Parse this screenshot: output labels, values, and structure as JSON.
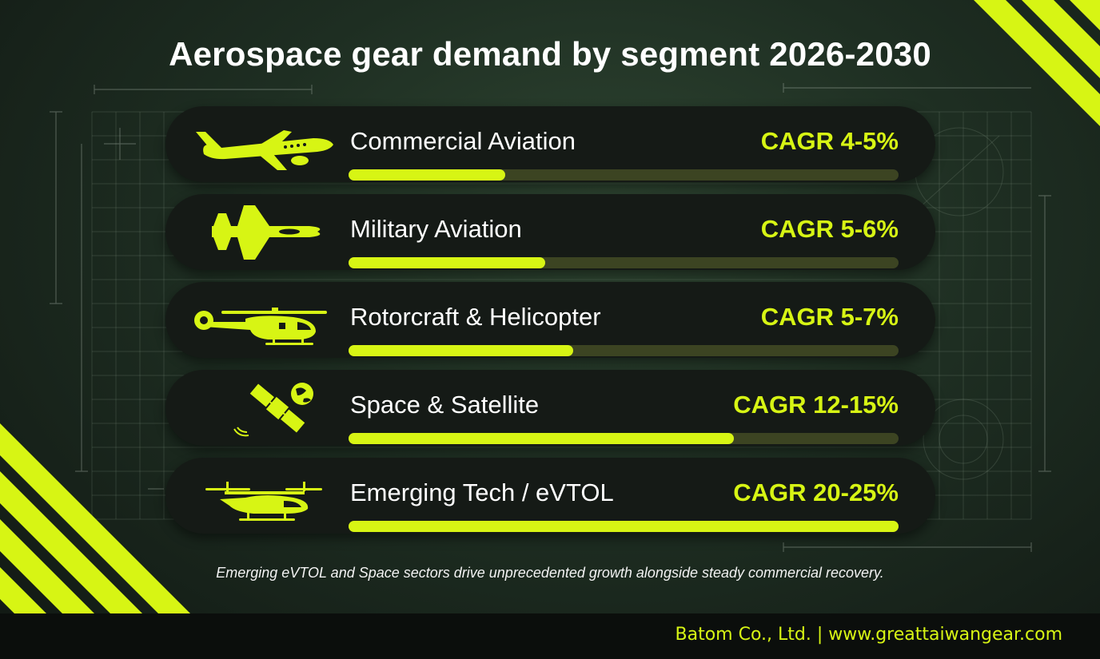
{
  "title": "Aerospace gear demand by segment 2026-2030",
  "caption": "Emerging eVTOL and Space sectors drive unprecedented growth alongside steady commercial recovery.",
  "footer": "Batom Co., Ltd. | www.greattaiwangear.com",
  "colors": {
    "accent": "#d7f514",
    "track": "#3c4422",
    "card": "#151a16",
    "text": "#ffffff"
  },
  "chart_data": {
    "type": "bar",
    "orientation": "horizontal",
    "title": "Aerospace gear demand by segment 2026-2030",
    "categories": [
      "Commercial Aviation",
      "Military Aviation",
      "Rotorcraft & Helicopter",
      "Space & Satellite",
      "Emerging Tech / eVTOL"
    ],
    "labels": [
      "CAGR 4-5%",
      "CAGR 5-6%",
      "CAGR 5-7%",
      "CAGR 12-15%",
      "CAGR 20-25%"
    ],
    "values": [
      0.285,
      0.357,
      0.408,
      0.7,
      1.0
    ],
    "icons": [
      "airliner-icon",
      "fighter-jet-icon",
      "helicopter-icon",
      "satellite-icon",
      "evtol-icon"
    ]
  }
}
